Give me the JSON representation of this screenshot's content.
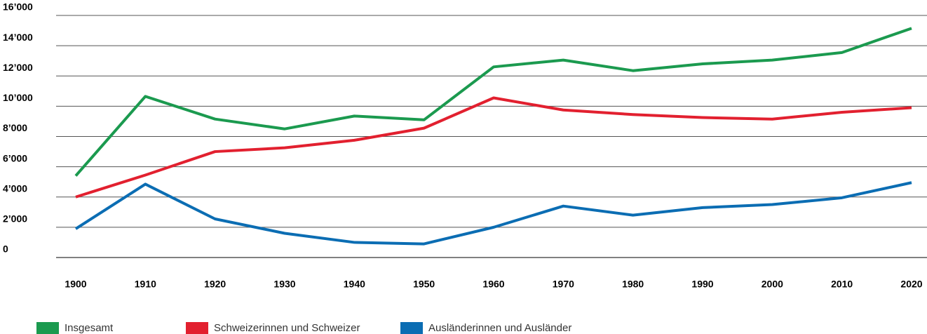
{
  "chart_data": {
    "type": "line",
    "categories": [
      "1900",
      "1910",
      "1920",
      "1930",
      "1940",
      "1950",
      "1960",
      "1970",
      "1980",
      "1990",
      "2000",
      "2010",
      "2020"
    ],
    "series": [
      {
        "name": "Insgesamt",
        "color": "#1b9a4f",
        "values": [
          5400,
          10650,
          9150,
          8500,
          9350,
          9100,
          12600,
          13050,
          12350,
          12800,
          13050,
          13550,
          15150
        ]
      },
      {
        "name": "Schweizerinnen und Schweizer",
        "color": "#e2202f",
        "values": [
          4000,
          5450,
          7000,
          7250,
          7750,
          8550,
          10550,
          9750,
          9450,
          9250,
          9150,
          9600,
          9900
        ]
      },
      {
        "name": "Ausländerinnen und Ausländer",
        "color": "#0b6db3",
        "values": [
          1900,
          4850,
          2550,
          1600,
          1000,
          900,
          2000,
          3400,
          2800,
          3300,
          3500,
          3950,
          4950
        ]
      }
    ],
    "ylim": [
      0,
      16000
    ],
    "yticks": [
      0,
      {
        "value": 2000,
        "label": "2’000"
      },
      {
        "value": 4000,
        "label": "4’000"
      },
      {
        "value": 6000,
        "label": "6’000"
      },
      {
        "value": 8000,
        "label": "8’000"
      },
      {
        "value": 10000,
        "label": "10’000"
      },
      {
        "value": 12000,
        "label": "12’000"
      },
      {
        "value": 14000,
        "label": "14’000"
      },
      {
        "value": 16000,
        "label": "16’000"
      }
    ],
    "grid": true,
    "legend": "bottom"
  }
}
